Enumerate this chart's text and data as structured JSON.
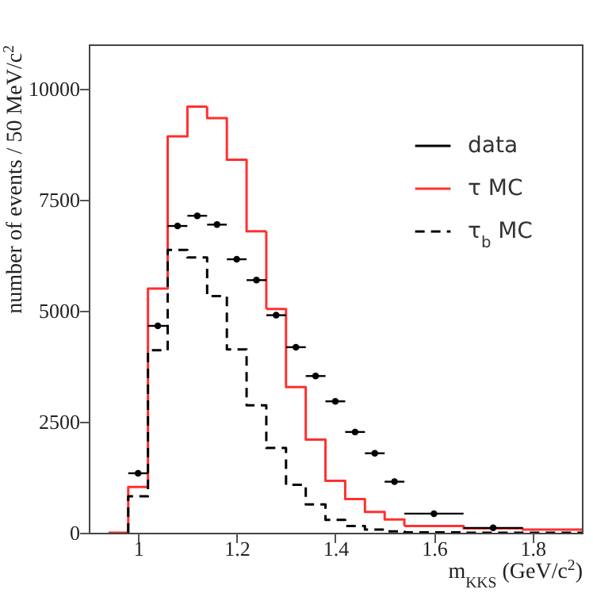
{
  "chart_data": {
    "type": "histogram",
    "xlabel": "m$_{KKS}$ (GeV/c$^{2}$)",
    "ylabel": "number of events / 50 MeV/c$^{2}$",
    "xlim": [
      0.9,
      1.9
    ],
    "xticks": [
      1,
      1.2,
      1.4,
      1.6,
      1.8
    ],
    "ylim": [
      0,
      11000
    ],
    "yticks": [
      0,
      2500,
      5000,
      7500,
      10000
    ],
    "grid": false,
    "legend": "top right",
    "series": [
      {
        "name": "data",
        "type": "scatter",
        "color": "#000000",
        "marker": "circle",
        "x": [
          1.0,
          1.04,
          1.08,
          1.12,
          1.16,
          1.2,
          1.24,
          1.28,
          1.32,
          1.36,
          1.4,
          1.44,
          1.48,
          1.52,
          1.6,
          1.72
        ],
        "values": [
          1340,
          4660,
          6910,
          7140,
          6940,
          6160,
          5690,
          4900,
          4180,
          3530,
          2960,
          2270,
          1790,
          1150,
          430,
          110
        ],
        "xerrors": [
          0.02,
          0.02,
          0.02,
          0.02,
          0.02,
          0.02,
          0.02,
          0.02,
          0.02,
          0.02,
          0.02,
          0.02,
          0.02,
          0.02,
          0.06,
          0.06
        ]
      },
      {
        "name": "τ MC",
        "color": "#ff3030",
        "line_style": "solid",
        "bins": [
          0.94,
          0.98,
          1.02,
          1.06,
          1.1,
          1.14,
          1.18,
          1.22,
          1.26,
          1.3,
          1.34,
          1.38,
          1.42,
          1.46,
          1.5,
          1.54,
          1.66,
          1.78,
          1.9
        ],
        "values": [
          0,
          1030,
          5500,
          8930,
          9600,
          9340,
          8400,
          6790,
          5040,
          3280,
          2100,
          1170,
          760,
          470,
          300,
          150,
          100,
          70
        ]
      },
      {
        "name": "τ$_{b}$ MC",
        "color": "#000000",
        "line_style": "dashed",
        "bins": [
          0.98,
          1.02,
          1.06,
          1.1,
          1.14,
          1.18,
          1.22,
          1.26,
          1.3,
          1.34,
          1.38,
          1.42,
          1.46,
          1.5,
          1.54,
          1.66,
          1.78,
          1.9
        ],
        "values": [
          820,
          4110,
          6370,
          6200,
          5330,
          4130,
          2870,
          1910,
          1080,
          640,
          290,
          150,
          70,
          30,
          10,
          0,
          0
        ]
      }
    ]
  }
}
